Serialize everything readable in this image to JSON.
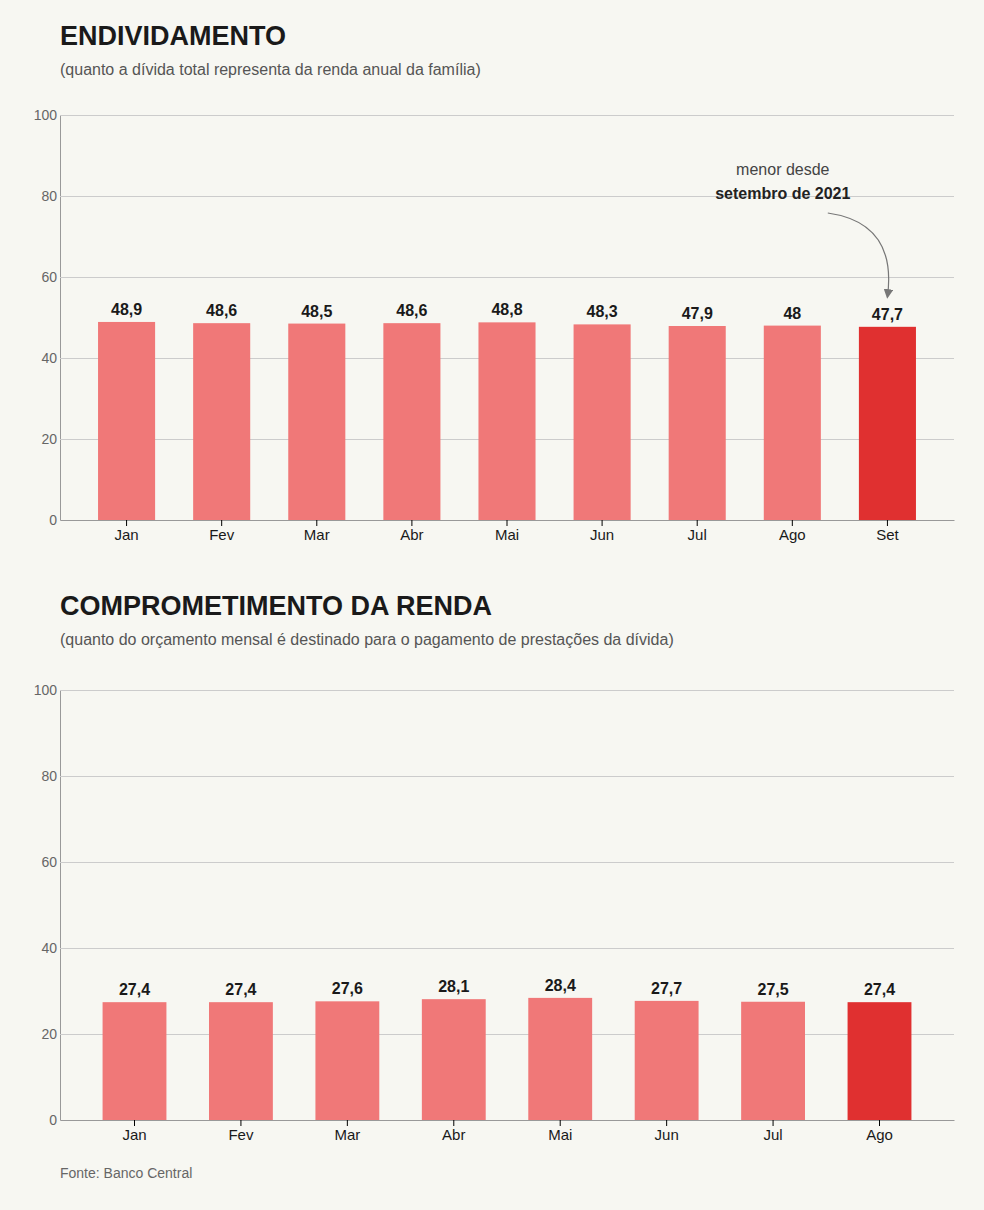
{
  "chart_data": [
    {
      "type": "bar",
      "title": "ENDIVIDAMENTO",
      "subtitle": "(quanto a dívida total representa da renda anual da família)",
      "categories": [
        "Jan",
        "Fev",
        "Mar",
        "Abr",
        "Mai",
        "Jun",
        "Jul",
        "Ago",
        "Set"
      ],
      "values": [
        48.9,
        48.6,
        48.5,
        48.6,
        48.8,
        48.3,
        47.9,
        48.0,
        47.7
      ],
      "value_labels": [
        "48,9",
        "48,6",
        "48,5",
        "48,6",
        "48,8",
        "48,3",
        "47,9",
        "48",
        "47,7"
      ],
      "colors": [
        "#f07878",
        "#f07878",
        "#f07878",
        "#f07878",
        "#f07878",
        "#f07878",
        "#f07878",
        "#f07878",
        "#e03030"
      ],
      "ylim": [
        0,
        100
      ],
      "yticks": [
        0,
        20,
        40,
        60,
        80,
        100
      ],
      "grid": true,
      "annotations": [
        "menor desde",
        "setembro de 2021"
      ]
    },
    {
      "type": "bar",
      "title": "COMPROMETIMENTO DA RENDA",
      "subtitle": "(quanto do orçamento mensal é destinado para o pagamento de prestações da dívida)",
      "categories": [
        "Jan",
        "Fev",
        "Mar",
        "Abr",
        "Mai",
        "Jun",
        "Jul",
        "Ago"
      ],
      "values": [
        27.4,
        27.4,
        27.6,
        28.1,
        28.4,
        27.7,
        27.5,
        27.4
      ],
      "value_labels": [
        "27,4",
        "27,4",
        "27,6",
        "28,1",
        "28,4",
        "27,7",
        "27,5",
        "27,4"
      ],
      "colors": [
        "#f07878",
        "#f07878",
        "#f07878",
        "#f07878",
        "#f07878",
        "#f07878",
        "#f07878",
        "#e03030"
      ],
      "ylim": [
        0,
        100
      ],
      "yticks": [
        0,
        20,
        40,
        60,
        80,
        100
      ],
      "grid": true,
      "source": "Fonte: Banco Central"
    }
  ]
}
